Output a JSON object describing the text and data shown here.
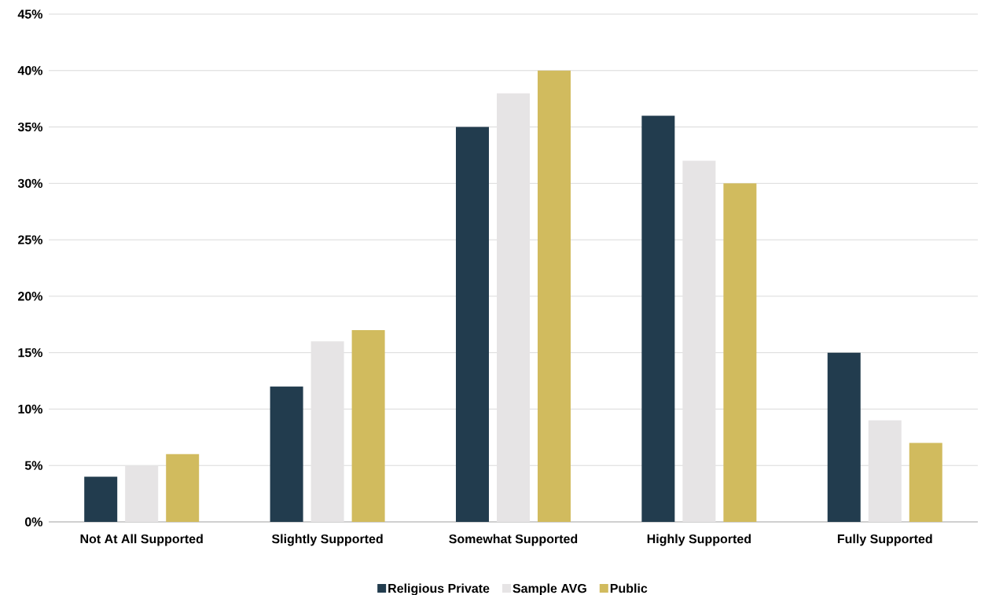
{
  "chart_data": {
    "type": "bar",
    "categories": [
      "Not At All Supported",
      "Slightly Supported",
      "Somewhat Supported",
      "Highly Supported",
      "Fully Supported"
    ],
    "series": [
      {
        "name": "Religious Private",
        "color": "#223c4e",
        "values": [
          4,
          12,
          35,
          36,
          15
        ]
      },
      {
        "name": "Sample AVG",
        "color": "#e6e4e5",
        "values": [
          5,
          16,
          38,
          32,
          9
        ]
      },
      {
        "name": "Public",
        "color": "#d1bb5e",
        "values": [
          6,
          17,
          40,
          30,
          7
        ]
      }
    ],
    "ylim": [
      0,
      45
    ],
    "yticks": [
      {
        "value": 0,
        "label": "0%"
      },
      {
        "value": 5,
        "label": "5%"
      },
      {
        "value": 10,
        "label": "10%"
      },
      {
        "value": 15,
        "label": "15%"
      },
      {
        "value": 20,
        "label": "20%"
      },
      {
        "value": 25,
        "label": "25%"
      },
      {
        "value": 30,
        "label": "30%"
      },
      {
        "value": 35,
        "label": "35%"
      },
      {
        "value": 40,
        "label": "40%"
      },
      {
        "value": 45,
        "label": "45%"
      }
    ],
    "grid": "y",
    "legend": "bottom"
  }
}
